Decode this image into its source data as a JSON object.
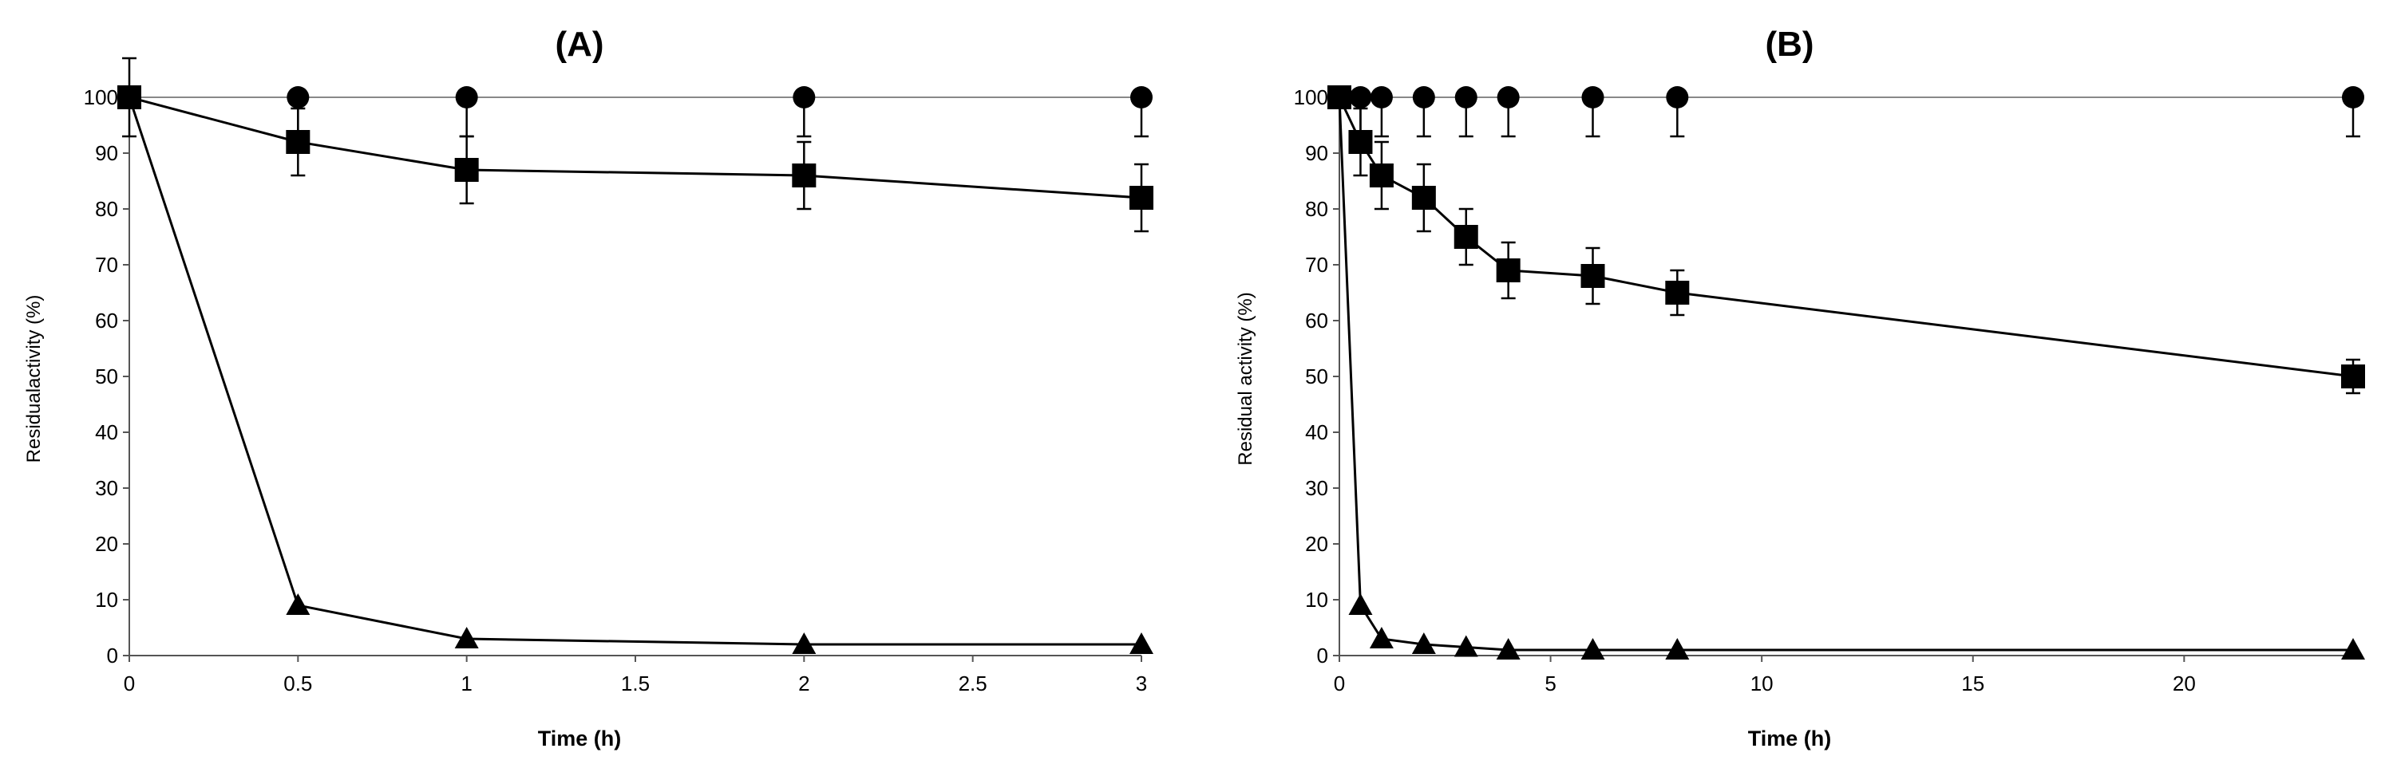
{
  "chart_data": [
    {
      "type": "line",
      "title": "(A)",
      "xlabel": "Time (h)",
      "ylabel": "Residualactivity (%)",
      "xlim": [
        0,
        3
      ],
      "ylim": [
        0,
        100
      ],
      "x_ticks": [
        "0",
        "0.5",
        "1",
        "1.5",
        "2",
        "2.5",
        "3"
      ],
      "y_ticks": [
        "0",
        "10",
        "20",
        "30",
        "40",
        "50",
        "60",
        "70",
        "80",
        "90",
        "100"
      ],
      "grid": false,
      "error_bars": true,
      "series": [
        {
          "marker": "circle",
          "x": [
            0,
            0.5,
            1,
            2,
            3
          ],
          "y": [
            100,
            100,
            100,
            100,
            100
          ],
          "err": [
            0,
            7,
            7,
            7,
            7
          ]
        },
        {
          "marker": "square",
          "x": [
            0,
            0.5,
            1,
            2,
            3
          ],
          "y": [
            100,
            92,
            87,
            86,
            82
          ],
          "err": [
            7,
            6,
            6,
            6,
            6
          ]
        },
        {
          "marker": "triangle",
          "x": [
            0,
            0.5,
            1,
            2,
            3
          ],
          "y": [
            100,
            9,
            3,
            2,
            2
          ],
          "err": [
            0,
            0,
            0,
            0,
            0
          ]
        }
      ]
    },
    {
      "type": "line",
      "title": "(B)",
      "xlabel": "Time (h)",
      "ylabel": "Residual activity (%)",
      "xlim": [
        0,
        24
      ],
      "ylim": [
        0,
        100
      ],
      "x_ticks": [
        "0",
        "5",
        "10",
        "15",
        "20"
      ],
      "y_ticks": [
        "0",
        "10",
        "20",
        "30",
        "40",
        "50",
        "60",
        "70",
        "80",
        "90",
        "100"
      ],
      "grid": false,
      "error_bars": true,
      "series": [
        {
          "marker": "circle",
          "x": [
            0,
            0.5,
            1,
            2,
            3,
            4,
            6,
            8,
            24
          ],
          "y": [
            100,
            100,
            100,
            100,
            100,
            100,
            100,
            100,
            100
          ],
          "err": [
            0,
            7,
            7,
            7,
            7,
            7,
            7,
            7,
            7
          ]
        },
        {
          "marker": "square",
          "x": [
            0,
            0.5,
            1,
            2,
            3,
            4,
            6,
            8,
            24
          ],
          "y": [
            100,
            92,
            86,
            82,
            75,
            69,
            68,
            65,
            50
          ],
          "err": [
            0,
            6,
            6,
            6,
            5,
            5,
            5,
            4,
            3
          ]
        },
        {
          "marker": "triangle",
          "x": [
            0,
            0.5,
            1,
            2,
            3,
            4,
            6,
            8,
            24
          ],
          "y": [
            100,
            9,
            3,
            2,
            1.5,
            1,
            1,
            1,
            1
          ],
          "err": [
            0,
            0,
            0,
            0,
            0,
            0,
            0,
            0,
            0
          ]
        }
      ]
    }
  ],
  "colors": {
    "line": "#000000",
    "axis": "#555555",
    "flat_line": "#888888"
  }
}
